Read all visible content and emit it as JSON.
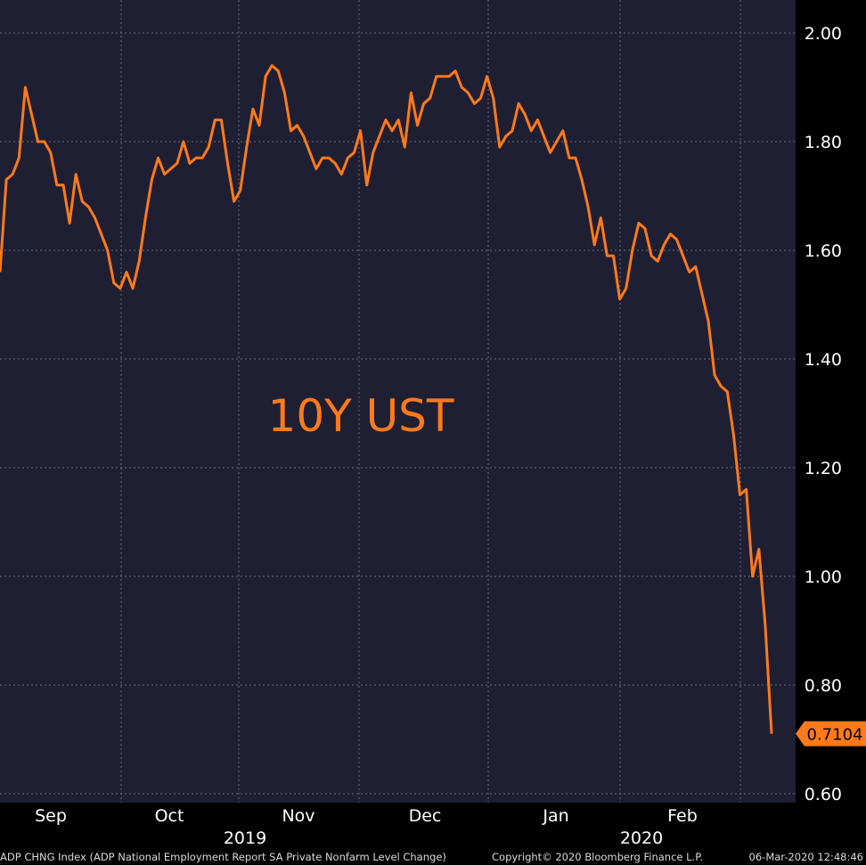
{
  "chart_data": {
    "type": "line",
    "annotation": "10Y UST",
    "ylim": [
      0.6,
      2.0
    ],
    "yticks": [
      0.6,
      0.8,
      1.0,
      1.2,
      1.4,
      1.6,
      1.8,
      2.0
    ],
    "ytick_labels": [
      "0.60",
      "0.80",
      "1.00",
      "1.20",
      "1.40",
      "1.60",
      "1.80",
      "2.00"
    ],
    "x_month_labels": [
      "Sep",
      "Oct",
      "Nov",
      "Dec",
      "Jan",
      "Feb"
    ],
    "x_year_labels": [
      "2019",
      "2020"
    ],
    "last_value_label": "0.7104",
    "grid": true,
    "series": [
      {
        "color": "#ff7a1a",
        "values": [
          1.56,
          1.73,
          1.74,
          1.77,
          1.9,
          1.85,
          1.8,
          1.8,
          1.78,
          1.72,
          1.72,
          1.65,
          1.74,
          1.69,
          1.68,
          1.66,
          1.63,
          1.6,
          1.54,
          1.53,
          1.56,
          1.53,
          1.58,
          1.66,
          1.73,
          1.77,
          1.74,
          1.75,
          1.76,
          1.8,
          1.76,
          1.77,
          1.77,
          1.79,
          1.84,
          1.84,
          1.76,
          1.69,
          1.71,
          1.79,
          1.86,
          1.83,
          1.92,
          1.94,
          1.93,
          1.89,
          1.82,
          1.83,
          1.81,
          1.78,
          1.75,
          1.77,
          1.77,
          1.76,
          1.74,
          1.77,
          1.78,
          1.82,
          1.72,
          1.78,
          1.81,
          1.84,
          1.82,
          1.84,
          1.79,
          1.89,
          1.83,
          1.87,
          1.88,
          1.92,
          1.92,
          1.92,
          1.93,
          1.9,
          1.89,
          1.87,
          1.88,
          1.92,
          1.88,
          1.79,
          1.81,
          1.82,
          1.87,
          1.85,
          1.82,
          1.84,
          1.81,
          1.78,
          1.8,
          1.82,
          1.77,
          1.77,
          1.73,
          1.68,
          1.61,
          1.66,
          1.59,
          1.59,
          1.51,
          1.53,
          1.6,
          1.65,
          1.64,
          1.59,
          1.58,
          1.61,
          1.63,
          1.62,
          1.59,
          1.56,
          1.57,
          1.52,
          1.47,
          1.37,
          1.35,
          1.34,
          1.26,
          1.15,
          1.16,
          1.0,
          1.05,
          0.91,
          0.7104
        ]
      }
    ]
  },
  "footer": {
    "left": "ADP CHNG Index (ADP National Employment Report SA Private Nonfarm Level Change)",
    "center": "Copyright© 2020 Bloomberg Finance L.P.",
    "right": "06-Mar-2020 12:48:46"
  },
  "colors": {
    "plot_bg": "#1f1f33",
    "axis_bg": "#000000",
    "line": "#ff7a1a",
    "grid": "#6e6e80",
    "text": "#ffffff"
  }
}
